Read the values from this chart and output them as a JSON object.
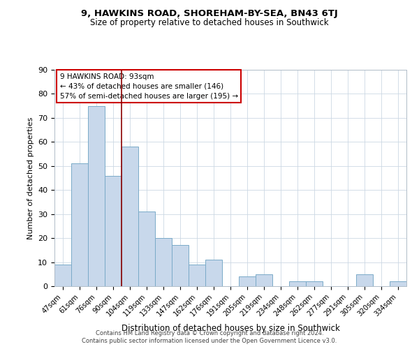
{
  "title1": "9, HAWKINS ROAD, SHOREHAM-BY-SEA, BN43 6TJ",
  "title2": "Size of property relative to detached houses in Southwick",
  "xlabel": "Distribution of detached houses by size in Southwick",
  "ylabel": "Number of detached properties",
  "bar_color": "#c8d8eb",
  "bar_edgecolor": "#7aaac8",
  "vline_color": "#8b0000",
  "categories": [
    "47sqm",
    "61sqm",
    "76sqm",
    "90sqm",
    "104sqm",
    "119sqm",
    "133sqm",
    "147sqm",
    "162sqm",
    "176sqm",
    "191sqm",
    "205sqm",
    "219sqm",
    "234sqm",
    "248sqm",
    "262sqm",
    "277sqm",
    "291sqm",
    "305sqm",
    "320sqm",
    "334sqm"
  ],
  "values": [
    9,
    51,
    75,
    46,
    58,
    31,
    20,
    17,
    9,
    11,
    0,
    4,
    5,
    0,
    2,
    2,
    0,
    0,
    5,
    0,
    2
  ],
  "ylim": [
    0,
    90
  ],
  "yticks": [
    0,
    10,
    20,
    30,
    40,
    50,
    60,
    70,
    80,
    90
  ],
  "annotation_title": "9 HAWKINS ROAD: 93sqm",
  "annotation_line1": "← 43% of detached houses are smaller (146)",
  "annotation_line2": "57% of semi-detached houses are larger (195) →",
  "annotation_box_edgecolor": "#cc0000",
  "footer1": "Contains HM Land Registry data © Crown copyright and database right 2024.",
  "footer2": "Contains public sector information licensed under the Open Government Licence v3.0."
}
